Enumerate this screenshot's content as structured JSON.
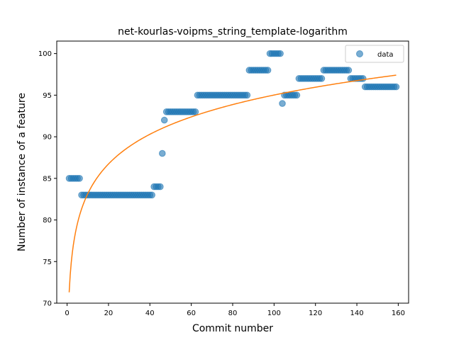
{
  "chart_data": {
    "type": "scatter",
    "title": "net-kourlas-voipms_string_template-logarithm",
    "xlabel": "Commit number",
    "ylabel": "Number of instance of a feature",
    "xlim": [
      -5,
      165
    ],
    "ylim": [
      70,
      101.5
    ],
    "xticks": [
      0,
      20,
      40,
      60,
      80,
      100,
      120,
      140,
      160
    ],
    "yticks": [
      70,
      75,
      80,
      85,
      90,
      95,
      100
    ],
    "grid": false,
    "legend": {
      "position": "top-right",
      "entries": [
        "data"
      ]
    },
    "colors": {
      "data": "#1f77b4",
      "fit": "#ff7f0e"
    },
    "series": [
      {
        "name": "data",
        "kind": "scatter",
        "segments": [
          {
            "x_start": 1,
            "x_end": 6,
            "y": 85
          },
          {
            "x_start": 7,
            "x_end": 41,
            "y": 83
          },
          {
            "x_start": 42,
            "x_end": 45,
            "y": 84
          },
          {
            "x_start": 46,
            "x_end": 46,
            "y": 88
          },
          {
            "x_start": 47,
            "x_end": 47,
            "y": 92
          },
          {
            "x_start": 48,
            "x_end": 62,
            "y": 93
          },
          {
            "x_start": 63,
            "x_end": 87,
            "y": 95
          },
          {
            "x_start": 88,
            "x_end": 97,
            "y": 98
          },
          {
            "x_start": 98,
            "x_end": 103,
            "y": 100
          },
          {
            "x_start": 104,
            "x_end": 104,
            "y": 94
          },
          {
            "x_start": 105,
            "x_end": 111,
            "y": 95
          },
          {
            "x_start": 112,
            "x_end": 123,
            "y": 97
          },
          {
            "x_start": 124,
            "x_end": 136,
            "y": 98
          },
          {
            "x_start": 137,
            "x_end": 143,
            "y": 97
          },
          {
            "x_start": 144,
            "x_end": 159,
            "y": 96
          }
        ]
      },
      {
        "kind": "line",
        "fit": "logarithmic",
        "a": 71.3,
        "b": 5.15,
        "x_range": [
          1,
          159
        ]
      }
    ]
  }
}
